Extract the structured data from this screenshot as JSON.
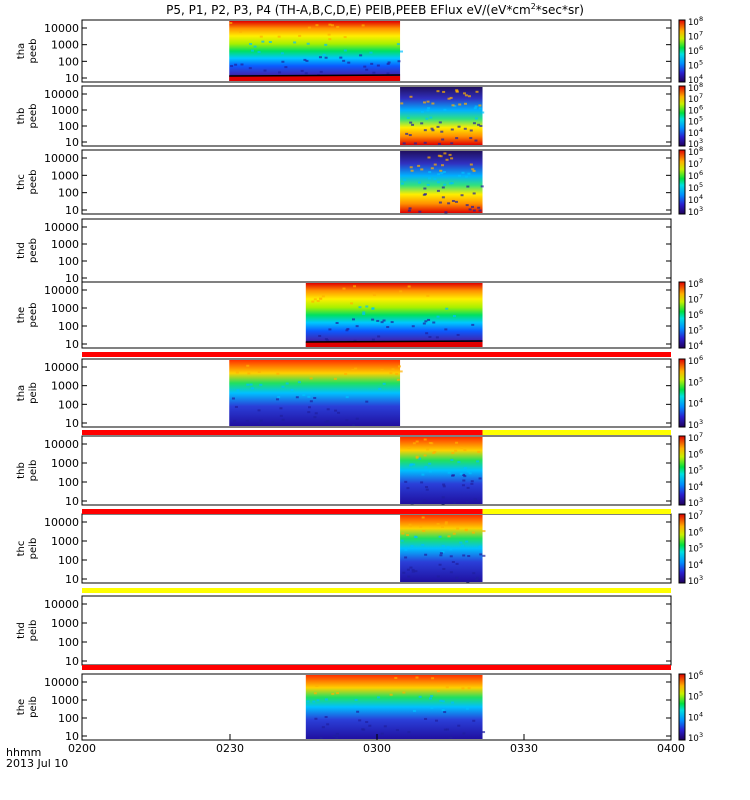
{
  "chart_data": {
    "type": "heatmap",
    "title_prefix": "P5, P1, P2, P3, P4 (TH-A,B,C,D,E) PEIB,PEEB EFlux eV/(eV*cm",
    "title_sup": "2",
    "title_suffix": "*sec*sr)",
    "time_axis": {
      "ticks": [
        "0200",
        "0230",
        "0300",
        "0330",
        "0400"
      ],
      "label_1": "hhmm",
      "label_2": "2013 Jul 10"
    },
    "y_ticks": [
      "10000",
      "1000",
      "100",
      "10"
    ],
    "scale": "log",
    "panels": [
      {
        "line1": "tha",
        "line2": "peeb",
        "bursts": [
          [
            0.25,
            0.54
          ]
        ],
        "bottom_band": "dark",
        "colorbar": [
          "10",
          "10",
          "10",
          "10",
          "10"
        ],
        "colorbar_exp": [
          "8",
          "7",
          "6",
          "5",
          "4"
        ]
      },
      {
        "line1": "thb",
        "line2": "peeb",
        "bursts": [
          [
            0.54,
            0.68
          ]
        ],
        "bottom_band": "none",
        "colorbar": [
          "10",
          "10",
          "10",
          "10",
          "10",
          "10"
        ],
        "colorbar_exp": [
          "8",
          "7",
          "6",
          "5",
          "4",
          "3"
        ]
      },
      {
        "line1": "thc",
        "line2": "peeb",
        "bursts": [
          [
            0.54,
            0.68
          ]
        ],
        "bottom_band": "none",
        "colorbar": [
          "10",
          "10",
          "10",
          "10",
          "10",
          "10"
        ],
        "colorbar_exp": [
          "8",
          "7",
          "6",
          "5",
          "4",
          "3"
        ]
      },
      {
        "line1": "thd",
        "line2": "peeb",
        "bursts": [],
        "bottom_band": "none",
        "colorbar": [],
        "colorbar_exp": []
      },
      {
        "line1": "the",
        "line2": "peeb",
        "bursts": [
          [
            0.38,
            0.68
          ]
        ],
        "bottom_band": "dark",
        "colorbar": [
          "10",
          "10",
          "10",
          "10",
          "10"
        ],
        "colorbar_exp": [
          "8",
          "7",
          "6",
          "5",
          "4"
        ]
      },
      {
        "line1": "tha",
        "line2": "peib",
        "bursts": [
          [
            0.25,
            0.54
          ]
        ],
        "bottom_band": "none",
        "colorbar": [
          "10",
          "10",
          "10",
          "10"
        ],
        "colorbar_exp": [
          "6",
          "5",
          "4",
          "3"
        ]
      },
      {
        "line1": "thb",
        "line2": "peib",
        "bursts": [
          [
            0.54,
            0.68
          ]
        ],
        "bottom_band": "none",
        "colorbar": [
          "10",
          "10",
          "10",
          "10",
          "10"
        ],
        "colorbar_exp": [
          "7",
          "6",
          "5",
          "4",
          "3"
        ]
      },
      {
        "line1": "thc",
        "line2": "peib",
        "bursts": [
          [
            0.54,
            0.68
          ]
        ],
        "bottom_band": "none",
        "colorbar": [
          "10",
          "10",
          "10",
          "10",
          "10"
        ],
        "colorbar_exp": [
          "7",
          "6",
          "5",
          "4",
          "3"
        ]
      },
      {
        "line1": "thd",
        "line2": "peib",
        "bursts": [],
        "bottom_band": "none",
        "colorbar": [],
        "colorbar_exp": []
      },
      {
        "line1": "the",
        "line2": "peib",
        "bursts": [
          [
            0.38,
            0.68
          ]
        ],
        "bottom_band": "none",
        "colorbar": [
          "10",
          "10",
          "10",
          "10"
        ],
        "colorbar_exp": [
          "6",
          "5",
          "4",
          "3"
        ]
      }
    ],
    "mode_bars": [
      {
        "segments": [
          {
            "from": 0.0,
            "to": 1.0,
            "color": "#ff0000"
          }
        ]
      },
      {
        "segments": [
          {
            "from": 0.0,
            "to": 0.68,
            "color": "#ff0000"
          },
          {
            "from": 0.68,
            "to": 1.0,
            "color": "#ffff00"
          }
        ]
      },
      {
        "segments": [
          {
            "from": 0.0,
            "to": 0.68,
            "color": "#ff0000"
          },
          {
            "from": 0.68,
            "to": 1.0,
            "color": "#ffff00"
          }
        ]
      },
      {
        "segments": [
          {
            "from": 0.0,
            "to": 1.0,
            "color": "#ffff00"
          }
        ]
      },
      {
        "segments": [
          {
            "from": 0.0,
            "to": 1.0,
            "color": "#ff0000"
          }
        ]
      }
    ]
  }
}
